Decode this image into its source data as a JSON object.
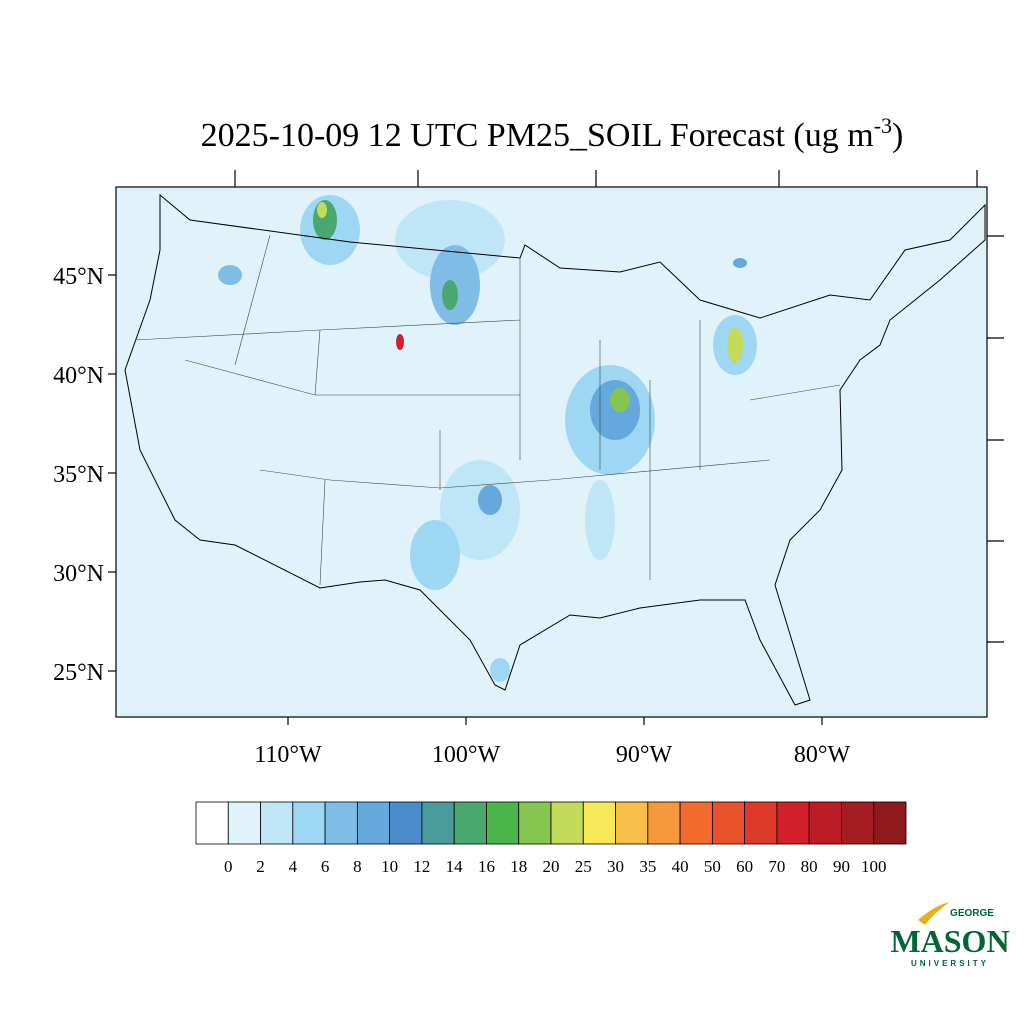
{
  "map": {
    "title": "2025-10-09 12 UTC PM25_SOIL Forecast (ug m",
    "title_superscript": "-3",
    "title_end": ")",
    "lat_ticks": [
      {
        "value": 45,
        "label": "45°N"
      },
      {
        "value": 40,
        "label": "40°N"
      },
      {
        "value": 35,
        "label": "35°N"
      },
      {
        "value": 30,
        "label": "30°N"
      },
      {
        "value": 25,
        "label": "25°N"
      }
    ],
    "lon_ticks": [
      {
        "value": -110,
        "label": "110°W"
      },
      {
        "value": -100,
        "label": "100°W"
      },
      {
        "value": -90,
        "label": "90°W"
      },
      {
        "value": -80,
        "label": "80°W"
      }
    ],
    "colorbar": {
      "levels": [
        0,
        2,
        4,
        6,
        8,
        10,
        12,
        14,
        16,
        18,
        20,
        25,
        30,
        35,
        40,
        50,
        60,
        70,
        80,
        90,
        100
      ],
      "colors": [
        "#ffffff",
        "#e0f3fb",
        "#bfe6f7",
        "#9dd7f4",
        "#80bde6",
        "#65a8db",
        "#4a8ccc",
        "#4a9c9c",
        "#49a86e",
        "#49b54a",
        "#86c650",
        "#c3da5a",
        "#f7e85a",
        "#f7bf4a",
        "#f6993d",
        "#f36c2c",
        "#e9512b",
        "#de3a2a",
        "#d21f2a",
        "#bb1c26",
        "#a51c22",
        "#8f1a1d"
      ]
    }
  },
  "logo": {
    "top": "GEORGE",
    "main": "MASON",
    "bottom": "UNIVERSITY"
  }
}
